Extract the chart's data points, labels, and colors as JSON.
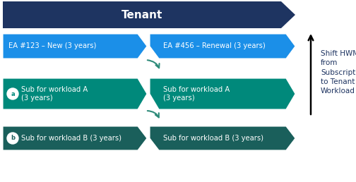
{
  "title": "Tenant",
  "title_bg": "#1E3461",
  "ea_color": "#1B8FE8",
  "ea_arrows": [
    {
      "text": "EA #123 – New (3 years)"
    },
    {
      "text": "EA #456 – Renewal (3 years)"
    }
  ],
  "workload_a_color": "#00897B",
  "workload_b_color": "#1A5F5B",
  "workload_a_texts": [
    "Sub for workload A\n(3 years)",
    "Sub for workload A\n(3 years)"
  ],
  "workload_b_texts": [
    "Sub for workload B (3 years)",
    "Sub for workload B (3 years)"
  ],
  "side_text": "Shift HWM\nfrom\nSubscription\nto Tenant and\nWorkload",
  "curved_arrow_color": "#2E8B7A",
  "fig_bg": "#FFFFFF",
  "fig_w": 5.04,
  "fig_h": 2.58,
  "dpi": 100
}
